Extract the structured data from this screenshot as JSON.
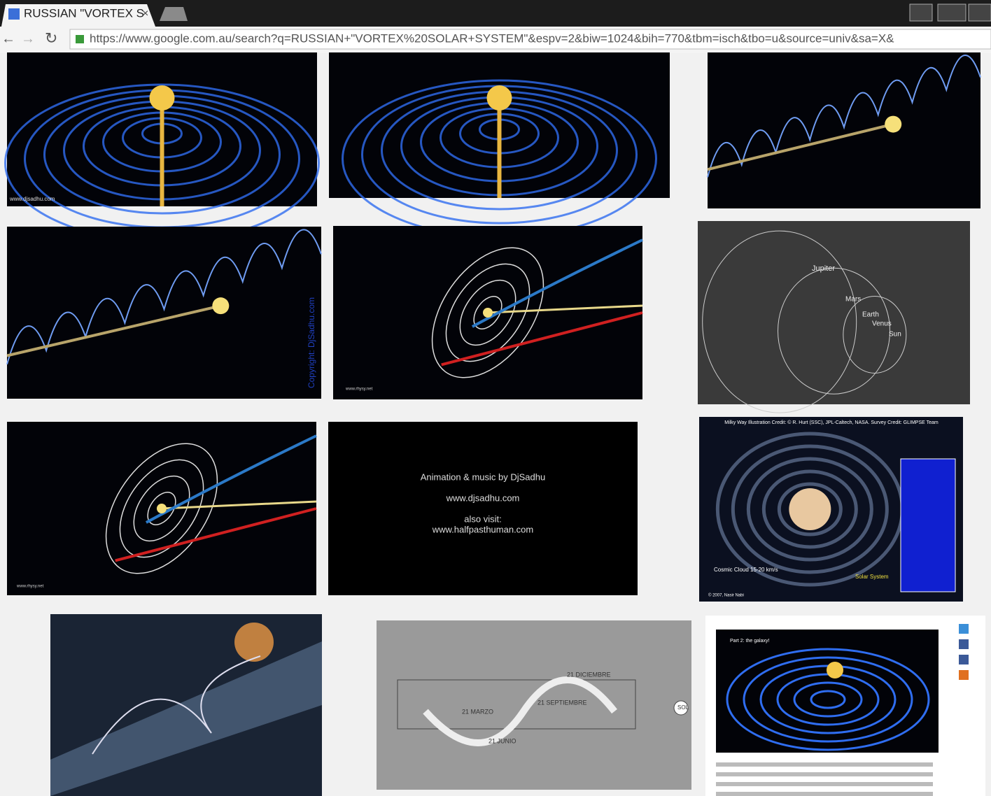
{
  "browser": {
    "tab_title": "RUSSIAN \"VORTEX S",
    "url": "https://www.google.com.au/search?q=RUSSIAN+\"VORTEX%20SOLAR+SYSTEM\"&espv=2&biw=1024&bih=770&tbm=isch&tbo=u&source=univ&sa=X&"
  },
  "image_texts": {
    "tile_1": [
      "www.djsadhu.com"
    ],
    "tile_4": [
      "Copyright: DjSadhu.com"
    ],
    "tile_5": [
      "www.rhysy.net"
    ],
    "tile_6": [
      "Jupiter",
      "Mars",
      "Earth",
      "Venus",
      "Sun"
    ],
    "tile_7": [
      "www.rhysy.net"
    ],
    "tile_8": [
      "Animation & music by DjSadhu",
      "www.djsadhu.com",
      "also visit:",
      "www.halfpasthuman.com"
    ],
    "tile_9": [
      "Milky Way Illustration Credit: © R. Hurt (SSC), JPL-Caltech, NASA. Survey Credit: GLIMPSE Team",
      "Solar System",
      "Cosmic Cloud 15-20 km/s",
      "© 2007, Nasir Nabi"
    ],
    "tile_11": [
      "21 DICIEMBRE",
      "21 SEPTIEMBRE",
      "21 MARZO",
      "21 JUNIO",
      "SOL"
    ],
    "tile_12": [
      "Part 2: the galaxy!"
    ]
  }
}
